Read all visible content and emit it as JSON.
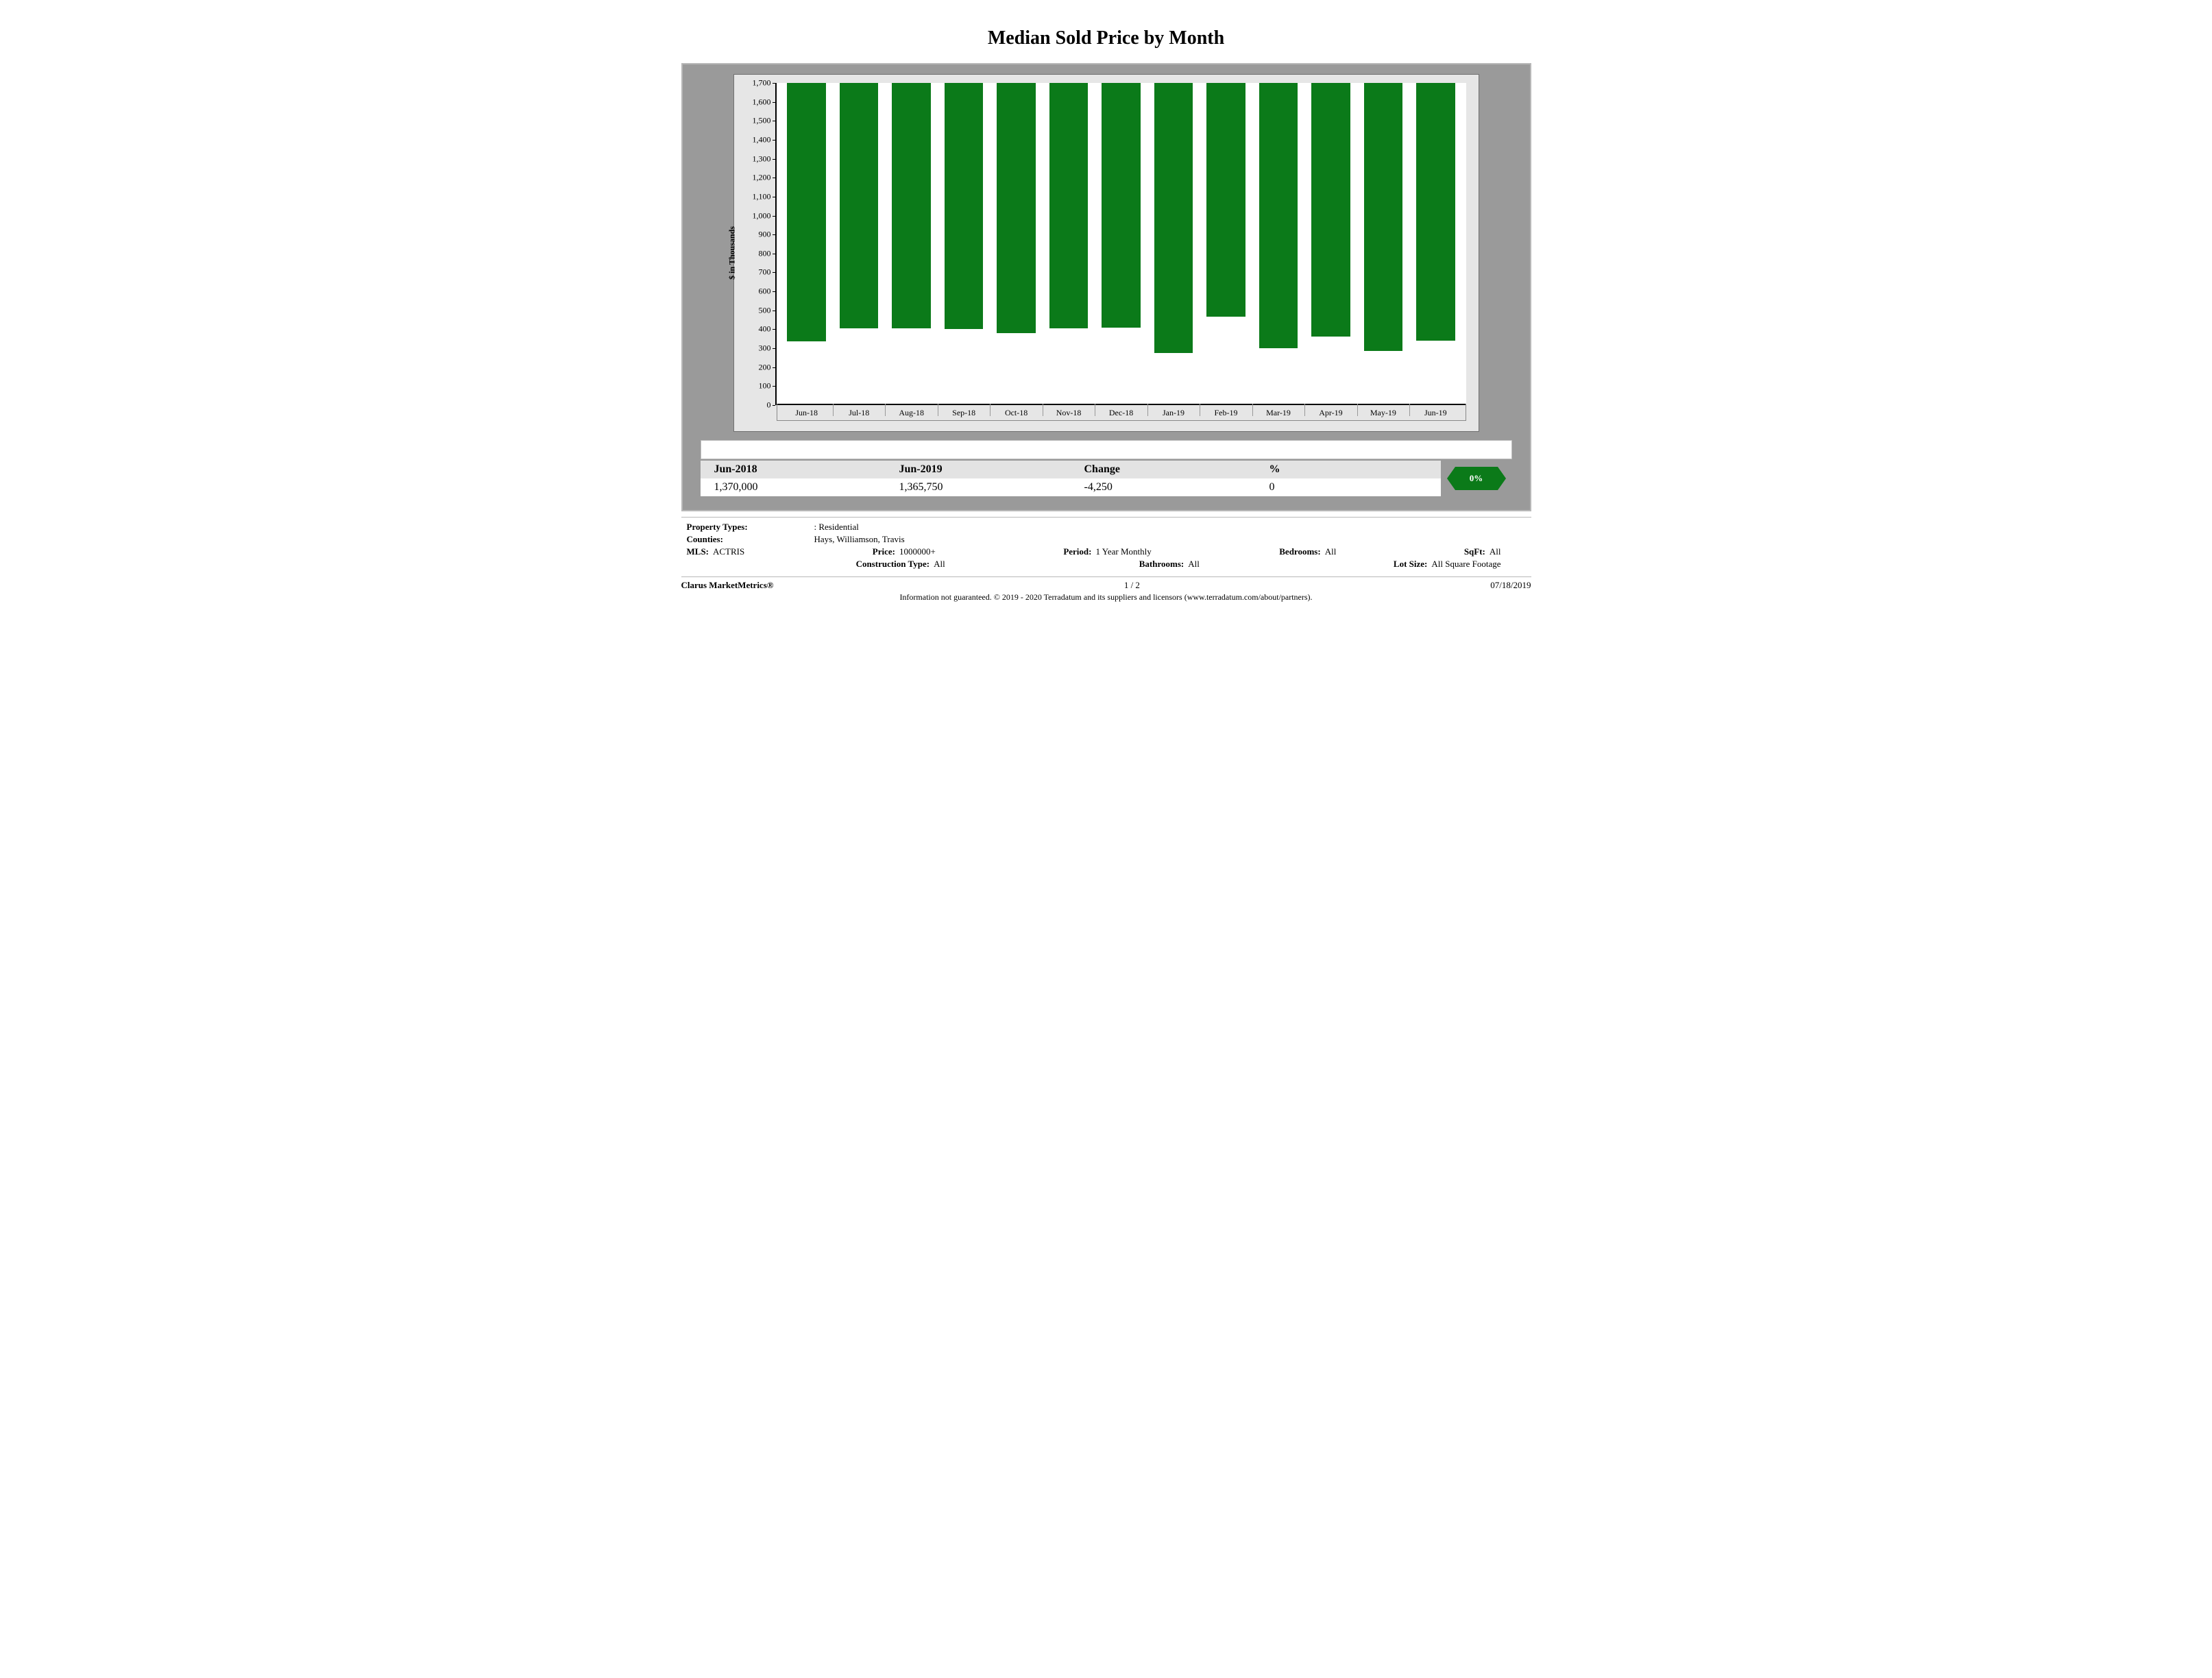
{
  "title": "Median Sold Price by Month",
  "chart": {
    "type": "bar",
    "yaxis_label": "$ in Thousands",
    "ylim": [
      0,
      1700
    ],
    "ytick_step": 100,
    "yticks": [
      "0",
      "100",
      "200",
      "300",
      "400",
      "500",
      "600",
      "700",
      "800",
      "900",
      "1,000",
      "1,100",
      "1,200",
      "1,300",
      "1,400",
      "1,500",
      "1,600",
      "1,700"
    ],
    "categories": [
      "Jun-18",
      "Jul-18",
      "Aug-18",
      "Sep-18",
      "Oct-18",
      "Nov-18",
      "Dec-18",
      "Jan-19",
      "Feb-19",
      "Mar-19",
      "Apr-19",
      "May-19",
      "Jun-19"
    ],
    "values": [
      1370,
      1300,
      1300,
      1305,
      1325,
      1300,
      1295,
      1430,
      1240,
      1405,
      1345,
      1420,
      1365
    ],
    "bar_color": "#0b7a19",
    "plot_bg": "#ffffff",
    "frame_bg": "#e6e6e6",
    "outer_bg": "#9a9a9a",
    "axis_color": "#000000",
    "label_fontsize": 12,
    "bar_width": 0.74
  },
  "summary": {
    "headers": [
      "Jun-2018",
      "Jun-2019",
      "Change",
      "%"
    ],
    "values": [
      "1,370,000",
      "1,365,750",
      "-4,250",
      "0"
    ],
    "badge_text": "0%",
    "badge_color": "#0b7a19"
  },
  "filters": {
    "property_types_k": "Property Types:",
    "property_types_v": ": Residential",
    "counties_k": "Counties:",
    "counties_v": "Hays, Williamson, Travis",
    "mls_k": "MLS:",
    "mls_v": "ACTRIS",
    "price_k": "Price:",
    "price_v": "1000000+",
    "period_k": "Period:",
    "period_v": "1 Year Monthly",
    "bedrooms_k": "Bedrooms:",
    "bedrooms_v": "All",
    "sqft_k": "SqFt:",
    "sqft_v": "All",
    "construction_k": "Construction Type:",
    "construction_v": "All",
    "bathrooms_k": "Bathrooms:",
    "bathrooms_v": "All",
    "lotsize_k": "Lot Size:",
    "lotsize_v": "All Square Footage"
  },
  "footer": {
    "brand": "Clarus MarketMetrics®",
    "page": "1 / 2",
    "date": "07/18/2019",
    "disclaimer": "Information not guaranteed. © 2019 - 2020 Terradatum and its suppliers and licensors (www.terradatum.com/about/partners)."
  }
}
